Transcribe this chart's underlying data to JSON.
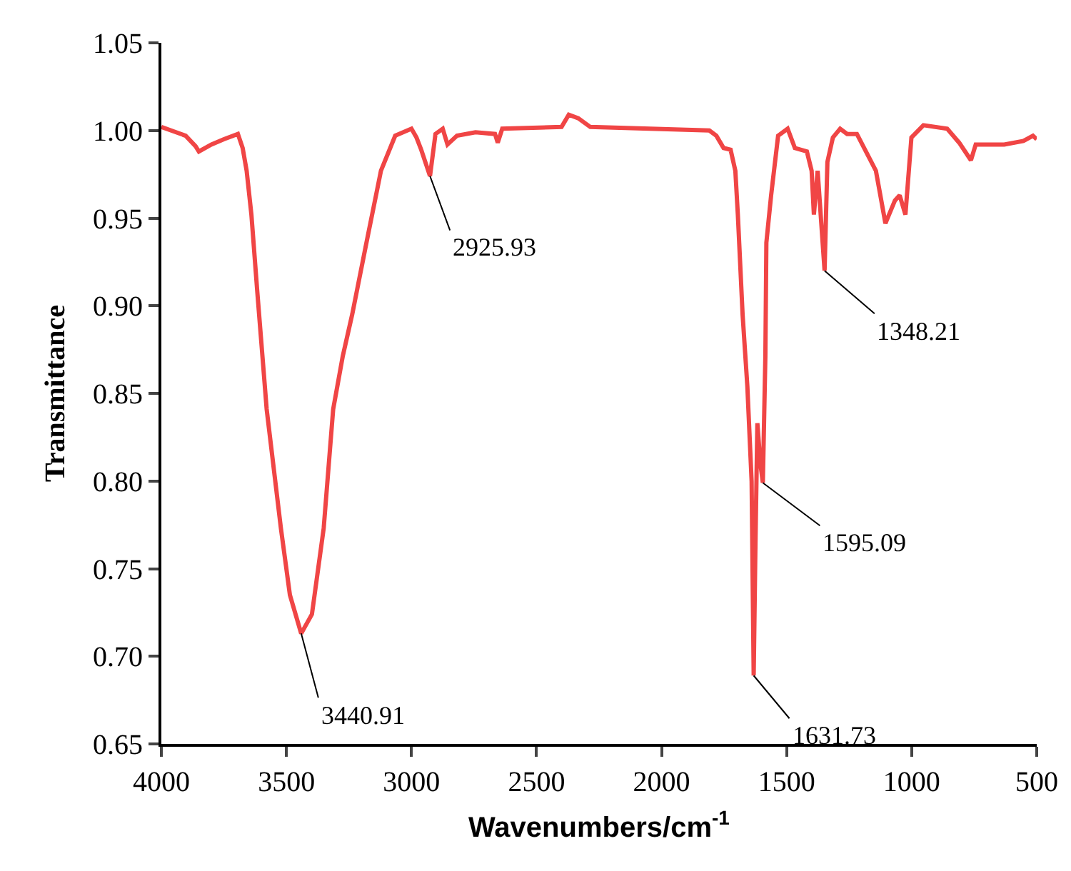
{
  "chart_data": {
    "type": "line",
    "xlabel": "Wavenumbers/cm$^{-1}$",
    "ylabel": "Transmittance",
    "xlim": [
      4000,
      500
    ],
    "ylim": [
      0.65,
      1.05
    ],
    "xticks": [
      4000,
      3500,
      3000,
      2500,
      2000,
      1500,
      1000,
      500
    ],
    "yticks": [
      0.65,
      {
        "value": 0.7,
        "label": "0.70"
      },
      0.75,
      {
        "value": 0.8,
        "label": "0.80"
      },
      0.85,
      {
        "value": 0.9,
        "label": "0.90"
      },
      0.95,
      {
        "value": 1.0,
        "label": "1.00"
      },
      1.05
    ],
    "grid": false,
    "legend": false,
    "marker": "none",
    "line_style": "solid",
    "series": [
      {
        "color": "#f04545",
        "x": [
          4000,
          3903,
          3863,
          3850,
          3800,
          3750,
          3694,
          3675,
          3659,
          3640,
          3617,
          3579,
          3522,
          3486,
          3440.91,
          3398,
          3351,
          3313,
          3275,
          3237,
          3180,
          3122,
          3065,
          3000,
          2980,
          2961,
          2925.93,
          2904,
          2875,
          2856,
          2818,
          2744,
          2666,
          2655,
          2637,
          2400,
          2371,
          2333,
          2285,
          1809,
          1781,
          1752,
          1724,
          1705,
          1695,
          1676,
          1657,
          1640,
          1631.73,
          1625,
          1617,
          1605,
          1595.09,
          1585,
          1581,
          1562,
          1534,
          1496,
          1467,
          1419,
          1400,
          1391,
          1376,
          1348.21,
          1337,
          1315,
          1286,
          1258,
          1219,
          1143,
          1105,
          1067,
          1048,
          1025,
          1001,
          953,
          858,
          810,
          763,
          744,
          668,
          630,
          553,
          515,
          500
        ],
        "values": [
          1.002,
          0.997,
          0.991,
          0.988,
          0.992,
          0.995,
          0.998,
          0.99,
          0.977,
          0.952,
          0.909,
          0.841,
          0.773,
          0.735,
          0.713,
          0.724,
          0.773,
          0.841,
          0.871,
          0.895,
          0.936,
          0.977,
          0.997,
          1.001,
          0.996,
          0.989,
          0.974,
          0.998,
          1.001,
          0.992,
          0.997,
          0.999,
          0.998,
          0.993,
          1.001,
          1.002,
          1.009,
          1.007,
          1.002,
          1.0,
          0.997,
          0.99,
          0.989,
          0.977,
          0.952,
          0.895,
          0.854,
          0.8,
          0.689,
          0.76,
          0.833,
          0.81,
          0.799,
          0.871,
          0.936,
          0.963,
          0.997,
          1.001,
          0.99,
          0.988,
          0.977,
          0.952,
          0.977,
          0.92,
          0.982,
          0.996,
          1.001,
          0.998,
          0.998,
          0.977,
          0.947,
          0.96,
          0.963,
          0.952,
          0.996,
          1.003,
          1.001,
          0.993,
          0.983,
          0.992,
          0.992,
          0.992,
          0.994,
          0.997,
          0.995
        ]
      }
    ],
    "annotations": [
      {
        "text": "3440.91",
        "x": 3440.91,
        "y": 0.713
      },
      {
        "text": "2925.93",
        "x": 2925.93,
        "y": 0.974
      },
      {
        "text": "1348.21",
        "x": 1348.21,
        "y": 0.92
      },
      {
        "text": "1595.09",
        "x": 1595.09,
        "y": 0.799
      },
      {
        "text": "1631.73",
        "x": 1631.73,
        "y": 0.689
      }
    ]
  }
}
